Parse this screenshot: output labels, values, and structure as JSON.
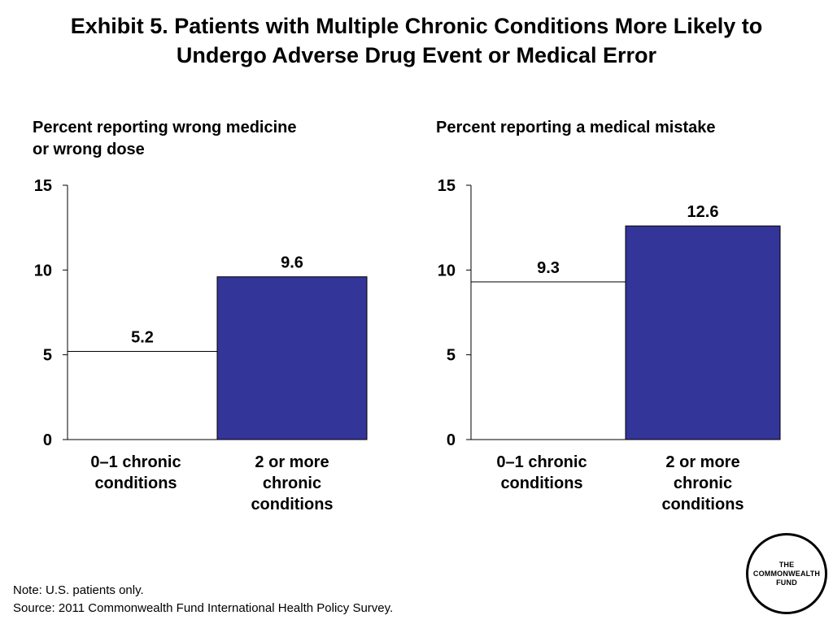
{
  "title": {
    "line1": "Exhibit 5. Patients with Multiple Chronic Conditions More Likely to",
    "line2": "Undergo Adverse Drug Event or Medical Error"
  },
  "chart_data": [
    {
      "type": "bar",
      "subtitle_lines": [
        "Percent reporting wrong medicine",
        "or wrong dose"
      ],
      "categories": [
        [
          "0–1 chronic",
          "conditions"
        ],
        [
          "2 or more",
          "chronic",
          "conditions"
        ]
      ],
      "values": [
        5.2,
        9.6
      ],
      "value_labels": [
        "5.2",
        "9.6"
      ],
      "bar_colors": [
        "#ffffff",
        "#343599"
      ],
      "ylim": [
        0,
        15
      ],
      "yticks": [
        0,
        5,
        10,
        15
      ],
      "grid": false,
      "legend": "none"
    },
    {
      "type": "bar",
      "subtitle_lines": [
        "Percent reporting a medical mistake"
      ],
      "categories": [
        [
          "0–1 chronic",
          "conditions"
        ],
        [
          "2 or more",
          "chronic",
          "conditions"
        ]
      ],
      "values": [
        9.3,
        12.6
      ],
      "value_labels": [
        "9.3",
        "12.6"
      ],
      "bar_colors": [
        "#ffffff",
        "#343599"
      ],
      "ylim": [
        0,
        15
      ],
      "yticks": [
        0,
        5,
        10,
        15
      ],
      "grid": false,
      "legend": "none"
    }
  ],
  "notes": {
    "note": "Note: U.S. patients only.",
    "source": "Source: 2011 Commonwealth Fund International Health Policy Survey."
  },
  "logo": {
    "lines": [
      "THE",
      "COMMONWEALTH",
      "FUND"
    ]
  }
}
